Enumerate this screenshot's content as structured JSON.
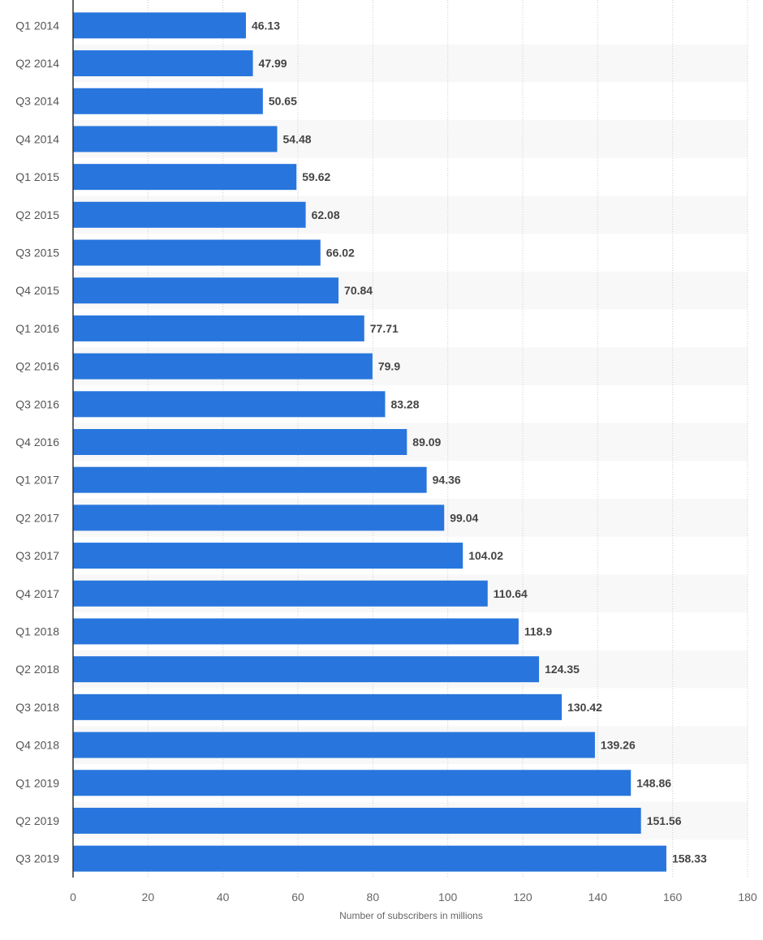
{
  "chart_data": {
    "type": "bar",
    "orientation": "horizontal",
    "categories": [
      "Q1 2014",
      "Q2 2014",
      "Q3 2014",
      "Q4 2014",
      "Q1 2015",
      "Q2 2015",
      "Q3 2015",
      "Q4 2015",
      "Q1 2016",
      "Q2 2016",
      "Q3 2016",
      "Q4 2016",
      "Q1 2017",
      "Q2 2017",
      "Q3 2017",
      "Q4 2017",
      "Q1 2018",
      "Q2 2018",
      "Q3 2018",
      "Q4 2018",
      "Q1 2019",
      "Q2 2019",
      "Q3 2019"
    ],
    "values": [
      46.13,
      47.99,
      50.65,
      54.48,
      59.62,
      62.08,
      66.02,
      70.84,
      77.71,
      79.9,
      83.28,
      89.09,
      94.36,
      99.04,
      104.02,
      110.64,
      118.9,
      124.35,
      130.42,
      139.26,
      148.86,
      151.56,
      158.33
    ],
    "value_labels": [
      "46.13",
      "47.99",
      "50.65",
      "54.48",
      "59.62",
      "62.08",
      "66.02",
      "70.84",
      "77.71",
      "79.9",
      "83.28",
      "89.09",
      "94.36",
      "99.04",
      "104.02",
      "110.64",
      "118.9",
      "124.35",
      "130.42",
      "139.26",
      "148.86",
      "151.56",
      "158.33"
    ],
    "xlabel": "Number of subscribers in millions",
    "xlim": [
      0,
      180
    ],
    "x_ticks": [
      0,
      20,
      40,
      60,
      80,
      100,
      120,
      140,
      160,
      180
    ],
    "x_tick_labels": [
      "0",
      "20",
      "40",
      "60",
      "80",
      "100",
      "120",
      "140",
      "160",
      "180"
    ],
    "grid": true,
    "colors": {
      "bar": "#2876dd",
      "band": "#f8f8f8",
      "grid": "#cccccc",
      "axis": "#333333"
    }
  }
}
